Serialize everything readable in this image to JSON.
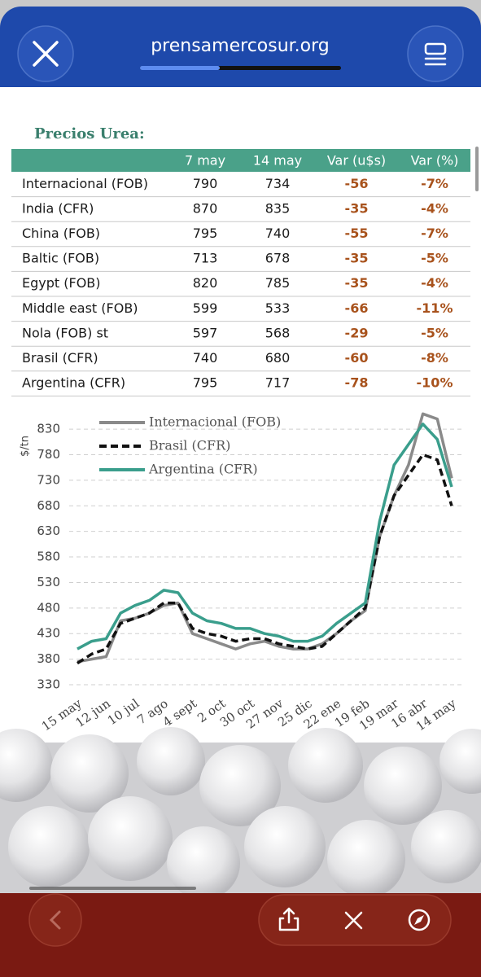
{
  "browser": {
    "url": "prensamercosur.org"
  },
  "table": {
    "title": "Precios Urea:",
    "header": [
      "7 may",
      "14 may",
      "Var (u$s)",
      "Var (%)"
    ],
    "rows": [
      [
        "Internacional (FOB)",
        "790",
        "734",
        "-56",
        "-7%"
      ],
      [
        "India (CFR)",
        "870",
        "835",
        "-35",
        "-4%"
      ],
      [
        "China (FOB)",
        "795",
        "740",
        "-55",
        "-7%"
      ],
      [
        "Baltic (FOB)",
        "713",
        "678",
        "-35",
        "-5%"
      ],
      [
        "Egypt (FOB)",
        "820",
        "785",
        "-35",
        "-4%"
      ],
      [
        "Middle east (FOB)",
        "599",
        "533",
        "-66",
        "-11%"
      ],
      [
        "Nola (FOB) st",
        "597",
        "568",
        "-29",
        "-5%"
      ],
      [
        "Brasil (CFR)",
        "740",
        "680",
        "-60",
        "-8%"
      ],
      [
        "Argentina (CFR)",
        "795",
        "717",
        "-78",
        "-10%"
      ]
    ]
  },
  "chart_data": {
    "type": "line",
    "ylabel": "$/tn",
    "categories": [
      "15 may",
      null,
      "12 jun",
      null,
      "10 jul",
      null,
      "7 ago",
      null,
      "4 sept",
      null,
      "2 oct",
      null,
      "30 oct",
      null,
      "27 nov",
      null,
      "25 dic",
      null,
      "22 ene",
      null,
      "19 feb",
      null,
      "19 mar",
      null,
      "16 abr",
      null,
      "14 may"
    ],
    "series": [
      {
        "name": "Internacional (FOB)",
        "color": "#8a8a8a",
        "dash": false,
        "values": [
          375,
          380,
          385,
          455,
          460,
          470,
          485,
          490,
          430,
          420,
          410,
          400,
          410,
          415,
          405,
          400,
          400,
          410,
          430,
          455,
          475,
          620,
          700,
          760,
          860,
          850,
          734
        ]
      },
      {
        "name": "Brasil (CFR)",
        "color": "#111111",
        "dash": true,
        "values": [
          372,
          390,
          400,
          450,
          460,
          470,
          490,
          490,
          440,
          430,
          425,
          415,
          420,
          420,
          410,
          405,
          400,
          405,
          430,
          455,
          480,
          620,
          700,
          740,
          780,
          770,
          680
        ]
      },
      {
        "name": "Argentina (CFR)",
        "color": "#3a9e8c",
        "dash": false,
        "values": [
          400,
          415,
          420,
          470,
          485,
          495,
          515,
          510,
          470,
          455,
          450,
          440,
          440,
          430,
          425,
          415,
          415,
          425,
          450,
          470,
          490,
          650,
          760,
          800,
          840,
          810,
          717
        ]
      }
    ],
    "ylim": [
      330,
      870
    ],
    "yticks": [
      330,
      380,
      430,
      480,
      530,
      580,
      630,
      680,
      730,
      780,
      830
    ],
    "grid": true
  }
}
